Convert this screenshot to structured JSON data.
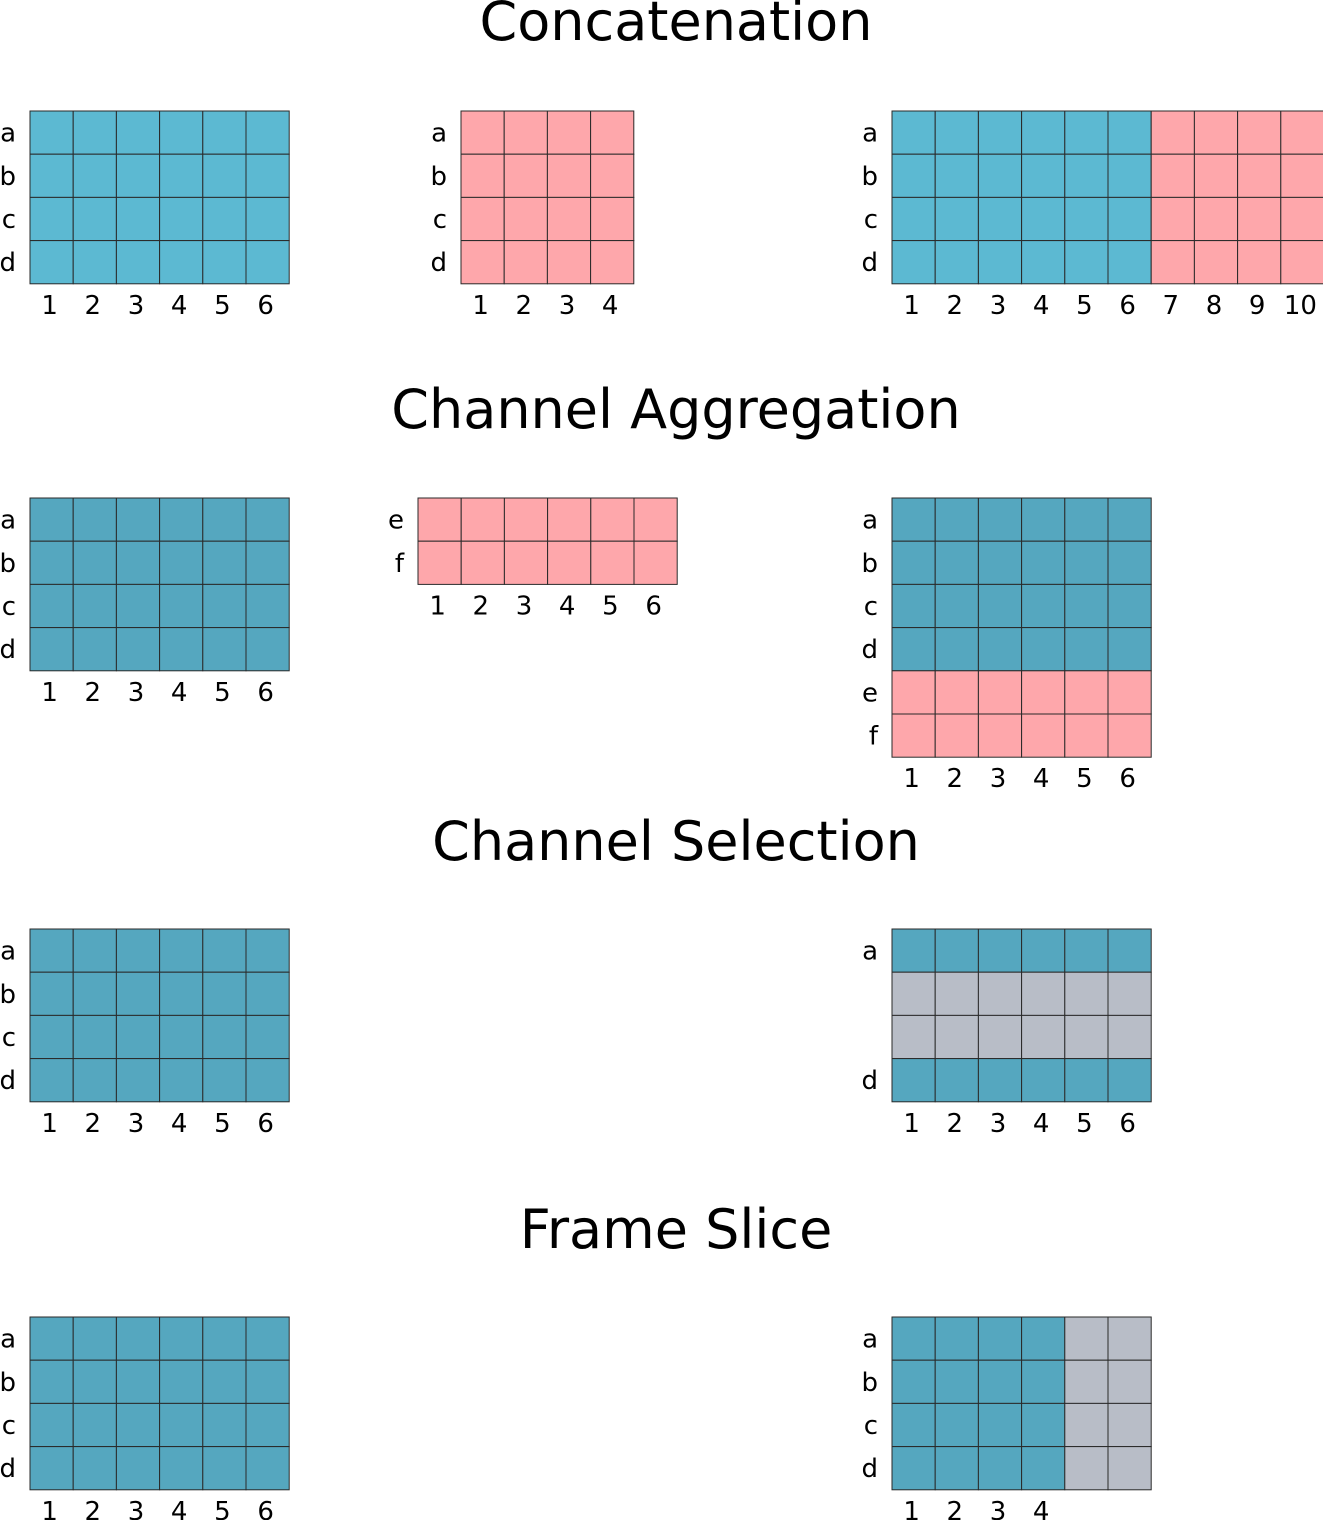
{
  "colors": {
    "blue_light": "#5cb9d2",
    "blue_dark": "#55a7bf",
    "pink": "#fea7ab",
    "gray": "#b8bdc7",
    "grid_line": "#2a2a2a",
    "text": "#000000"
  },
  "sections": [
    {
      "id": "concatenation",
      "title": "Concatenation",
      "grids": [
        {
          "id": "concat-input-1",
          "rows": [
            "a",
            "b",
            "c",
            "d"
          ],
          "cols": [
            "1",
            "2",
            "3",
            "4",
            "5",
            "6"
          ],
          "fill": [
            [
              "blue_light",
              "blue_light",
              "blue_light",
              "blue_light",
              "blue_light",
              "blue_light"
            ],
            [
              "blue_light",
              "blue_light",
              "blue_light",
              "blue_light",
              "blue_light",
              "blue_light"
            ],
            [
              "blue_light",
              "blue_light",
              "blue_light",
              "blue_light",
              "blue_light",
              "blue_light"
            ],
            [
              "blue_light",
              "blue_light",
              "blue_light",
              "blue_light",
              "blue_light",
              "blue_light"
            ]
          ]
        },
        {
          "id": "concat-input-2",
          "rows": [
            "a",
            "b",
            "c",
            "d"
          ],
          "cols": [
            "1",
            "2",
            "3",
            "4"
          ],
          "fill": [
            [
              "pink",
              "pink",
              "pink",
              "pink"
            ],
            [
              "pink",
              "pink",
              "pink",
              "pink"
            ],
            [
              "pink",
              "pink",
              "pink",
              "pink"
            ],
            [
              "pink",
              "pink",
              "pink",
              "pink"
            ]
          ]
        },
        {
          "id": "concat-output",
          "rows": [
            "a",
            "b",
            "c",
            "d"
          ],
          "cols": [
            "1",
            "2",
            "3",
            "4",
            "5",
            "6",
            "7",
            "8",
            "9",
            "10"
          ],
          "fill": [
            [
              "blue_light",
              "blue_light",
              "blue_light",
              "blue_light",
              "blue_light",
              "blue_light",
              "pink",
              "pink",
              "pink",
              "pink"
            ],
            [
              "blue_light",
              "blue_light",
              "blue_light",
              "blue_light",
              "blue_light",
              "blue_light",
              "pink",
              "pink",
              "pink",
              "pink"
            ],
            [
              "blue_light",
              "blue_light",
              "blue_light",
              "blue_light",
              "blue_light",
              "blue_light",
              "pink",
              "pink",
              "pink",
              "pink"
            ],
            [
              "blue_light",
              "blue_light",
              "blue_light",
              "blue_light",
              "blue_light",
              "blue_light",
              "pink",
              "pink",
              "pink",
              "pink"
            ]
          ]
        }
      ]
    },
    {
      "id": "channel-aggregation",
      "title": "Channel Aggregation",
      "grids": [
        {
          "id": "agg-input-1",
          "rows": [
            "a",
            "b",
            "c",
            "d"
          ],
          "cols": [
            "1",
            "2",
            "3",
            "4",
            "5",
            "6"
          ],
          "fill": [
            [
              "blue_dark",
              "blue_dark",
              "blue_dark",
              "blue_dark",
              "blue_dark",
              "blue_dark"
            ],
            [
              "blue_dark",
              "blue_dark",
              "blue_dark",
              "blue_dark",
              "blue_dark",
              "blue_dark"
            ],
            [
              "blue_dark",
              "blue_dark",
              "blue_dark",
              "blue_dark",
              "blue_dark",
              "blue_dark"
            ],
            [
              "blue_dark",
              "blue_dark",
              "blue_dark",
              "blue_dark",
              "blue_dark",
              "blue_dark"
            ]
          ]
        },
        {
          "id": "agg-input-2",
          "rows": [
            "e",
            "f"
          ],
          "cols": [
            "1",
            "2",
            "3",
            "4",
            "5",
            "6"
          ],
          "fill": [
            [
              "pink",
              "pink",
              "pink",
              "pink",
              "pink",
              "pink"
            ],
            [
              "pink",
              "pink",
              "pink",
              "pink",
              "pink",
              "pink"
            ]
          ]
        },
        {
          "id": "agg-output",
          "rows": [
            "a",
            "b",
            "c",
            "d",
            "e",
            "f"
          ],
          "cols": [
            "1",
            "2",
            "3",
            "4",
            "5",
            "6"
          ],
          "fill": [
            [
              "blue_dark",
              "blue_dark",
              "blue_dark",
              "blue_dark",
              "blue_dark",
              "blue_dark"
            ],
            [
              "blue_dark",
              "blue_dark",
              "blue_dark",
              "blue_dark",
              "blue_dark",
              "blue_dark"
            ],
            [
              "blue_dark",
              "blue_dark",
              "blue_dark",
              "blue_dark",
              "blue_dark",
              "blue_dark"
            ],
            [
              "blue_dark",
              "blue_dark",
              "blue_dark",
              "blue_dark",
              "blue_dark",
              "blue_dark"
            ],
            [
              "pink",
              "pink",
              "pink",
              "pink",
              "pink",
              "pink"
            ],
            [
              "pink",
              "pink",
              "pink",
              "pink",
              "pink",
              "pink"
            ]
          ]
        }
      ]
    },
    {
      "id": "channel-selection",
      "title": "Channel Selection",
      "grids": [
        {
          "id": "sel-input",
          "rows": [
            "a",
            "b",
            "c",
            "d"
          ],
          "cols": [
            "1",
            "2",
            "3",
            "4",
            "5",
            "6"
          ],
          "fill": [
            [
              "blue_dark",
              "blue_dark",
              "blue_dark",
              "blue_dark",
              "blue_dark",
              "blue_dark"
            ],
            [
              "blue_dark",
              "blue_dark",
              "blue_dark",
              "blue_dark",
              "blue_dark",
              "blue_dark"
            ],
            [
              "blue_dark",
              "blue_dark",
              "blue_dark",
              "blue_dark",
              "blue_dark",
              "blue_dark"
            ],
            [
              "blue_dark",
              "blue_dark",
              "blue_dark",
              "blue_dark",
              "blue_dark",
              "blue_dark"
            ]
          ]
        },
        {
          "id": "sel-output",
          "rows": [
            "a",
            "",
            "",
            "d"
          ],
          "cols": [
            "1",
            "2",
            "3",
            "4",
            "5",
            "6"
          ],
          "fill": [
            [
              "blue_dark",
              "blue_dark",
              "blue_dark",
              "blue_dark",
              "blue_dark",
              "blue_dark"
            ],
            [
              "gray",
              "gray",
              "gray",
              "gray",
              "gray",
              "gray"
            ],
            [
              "gray",
              "gray",
              "gray",
              "gray",
              "gray",
              "gray"
            ],
            [
              "blue_dark",
              "blue_dark",
              "blue_dark",
              "blue_dark",
              "blue_dark",
              "blue_dark"
            ]
          ]
        }
      ]
    },
    {
      "id": "frame-slice",
      "title": "Frame Slice",
      "grids": [
        {
          "id": "slice-input",
          "rows": [
            "a",
            "b",
            "c",
            "d"
          ],
          "cols": [
            "1",
            "2",
            "3",
            "4",
            "5",
            "6"
          ],
          "fill": [
            [
              "blue_dark",
              "blue_dark",
              "blue_dark",
              "blue_dark",
              "blue_dark",
              "blue_dark"
            ],
            [
              "blue_dark",
              "blue_dark",
              "blue_dark",
              "blue_dark",
              "blue_dark",
              "blue_dark"
            ],
            [
              "blue_dark",
              "blue_dark",
              "blue_dark",
              "blue_dark",
              "blue_dark",
              "blue_dark"
            ],
            [
              "blue_dark",
              "blue_dark",
              "blue_dark",
              "blue_dark",
              "blue_dark",
              "blue_dark"
            ]
          ]
        },
        {
          "id": "slice-output",
          "rows": [
            "a",
            "b",
            "c",
            "d"
          ],
          "cols": [
            "1",
            "2",
            "3",
            "4",
            "",
            ""
          ],
          "fill": [
            [
              "blue_dark",
              "blue_dark",
              "blue_dark",
              "blue_dark",
              "gray",
              "gray"
            ],
            [
              "blue_dark",
              "blue_dark",
              "blue_dark",
              "blue_dark",
              "gray",
              "gray"
            ],
            [
              "blue_dark",
              "blue_dark",
              "blue_dark",
              "blue_dark",
              "gray",
              "gray"
            ],
            [
              "blue_dark",
              "blue_dark",
              "blue_dark",
              "blue_dark",
              "gray",
              "gray"
            ]
          ]
        }
      ]
    }
  ]
}
